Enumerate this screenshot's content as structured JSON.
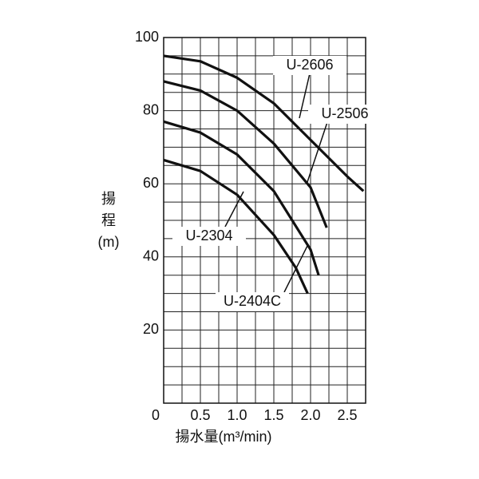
{
  "chart_data": {
    "type": "line",
    "ylabel_lines": [
      "揚",
      "程",
      "(m)"
    ],
    "xlabel": "揚水量(m³/min)",
    "xlim": [
      0,
      2.75
    ],
    "ylim": [
      0,
      100
    ],
    "xticks": [
      0,
      0.5,
      {
        "value": 1,
        "label": "1.0"
      },
      1.5,
      {
        "value": 2,
        "label": "2.0"
      },
      2.5
    ],
    "yticks": [
      20,
      40,
      60,
      80,
      100
    ],
    "x_grid_step": 0.25,
    "y_grid_step": 5,
    "grid": true,
    "series": [
      {
        "name": "U-2606",
        "color": "#111111",
        "x": [
          0,
          0.5,
          1.0,
          1.5,
          2.0,
          2.5,
          2.72
        ],
        "values": [
          95,
          93.5,
          89,
          82,
          72,
          62,
          58
        ]
      },
      {
        "name": "U-2506",
        "color": "#111111",
        "x": [
          0,
          0.5,
          1.0,
          1.5,
          2.0,
          2.22
        ],
        "values": [
          88,
          85.5,
          80,
          71,
          59,
          48
        ]
      },
      {
        "name": "U-2404C",
        "color": "#111111",
        "x": [
          0,
          0.5,
          1.0,
          1.5,
          2.0,
          2.11
        ],
        "values": [
          77,
          74,
          68,
          58,
          42,
          35
        ]
      },
      {
        "name": "U-2304",
        "color": "#111111",
        "x": [
          0,
          0.5,
          1.0,
          1.5,
          1.8,
          1.96
        ],
        "values": [
          66.5,
          63.5,
          57,
          46,
          37,
          30
        ]
      }
    ]
  }
}
